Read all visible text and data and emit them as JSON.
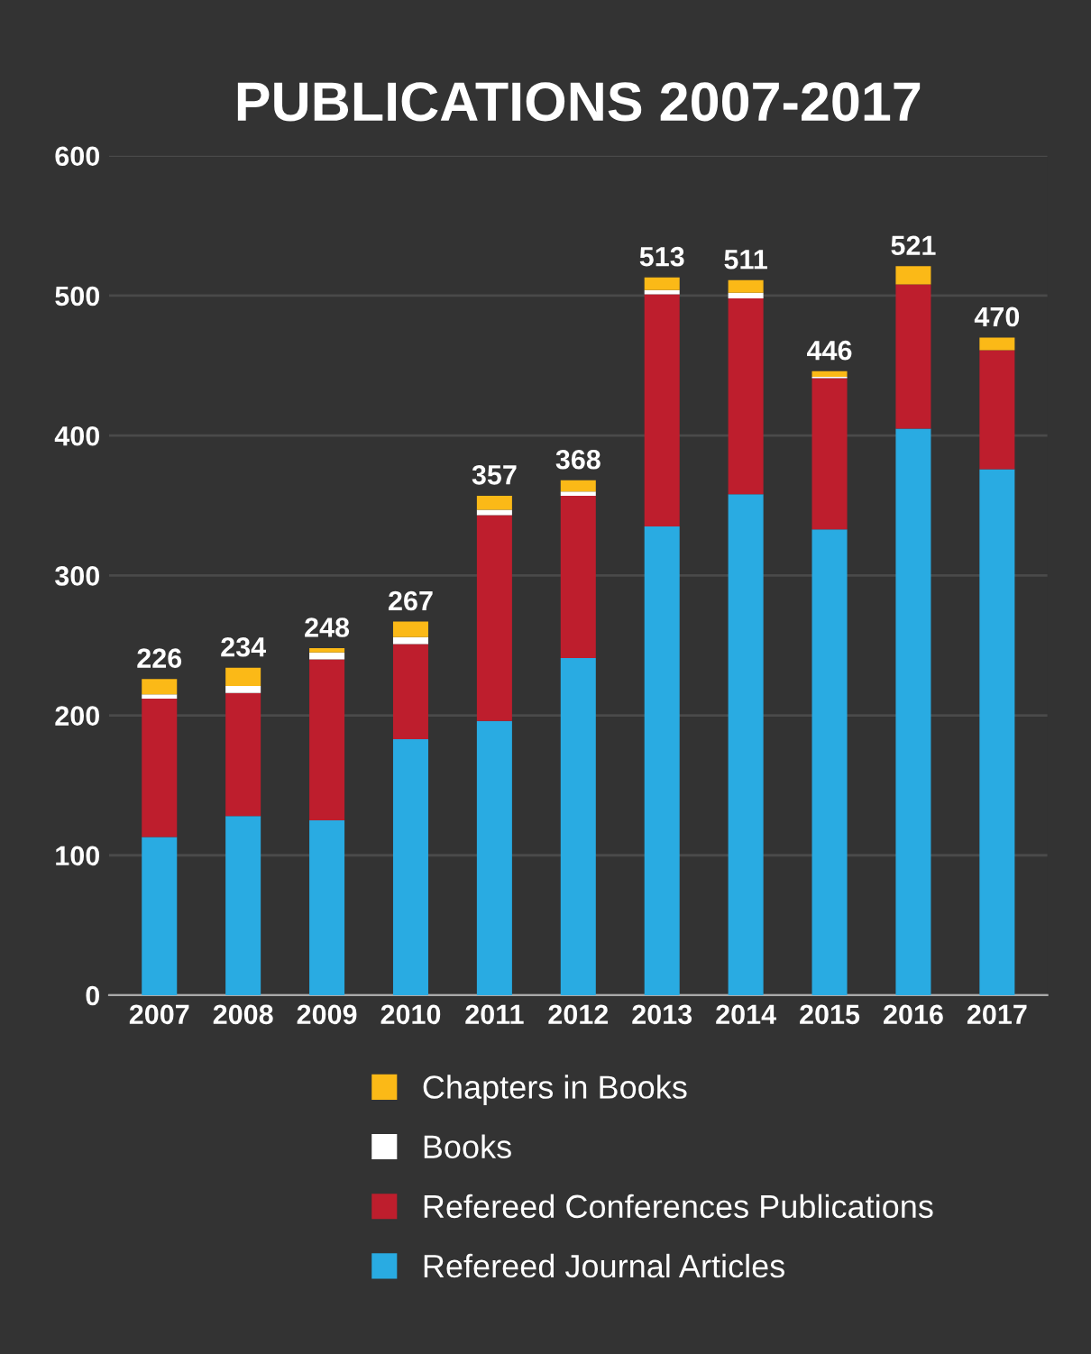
{
  "chart_data": {
    "type": "bar",
    "title": "PUBLICATIONS 2007-2017",
    "categories": [
      "2007",
      "2008",
      "2009",
      "2010",
      "2011",
      "2012",
      "2013",
      "2014",
      "2015",
      "2016",
      "2017"
    ],
    "stacked": true,
    "series": [
      {
        "name": "Refereed Journal Articles",
        "color": "#29abe2",
        "values": [
          113,
          128,
          125,
          183,
          196,
          241,
          335,
          358,
          333,
          405,
          376
        ]
      },
      {
        "name": "Refereed Conferences Publications",
        "color": "#be1e2d",
        "values": [
          99,
          88,
          115,
          68,
          147,
          116,
          166,
          140,
          108,
          103,
          85
        ]
      },
      {
        "name": "Books",
        "color": "#ffffff",
        "values": [
          3,
          5,
          5,
          5,
          4,
          3,
          3,
          4,
          1,
          0,
          0
        ]
      },
      {
        "name": "Chapters in Books",
        "color": "#fbb917",
        "values": [
          11,
          13,
          3,
          11,
          10,
          8,
          9,
          9,
          4,
          13,
          9
        ]
      }
    ],
    "totals": [
      "226",
      "234",
      "248",
      "267",
      "357",
      "368",
      "513",
      "511",
      "446",
      "521",
      "470"
    ],
    "ylim": [
      0,
      600
    ],
    "yticks": [
      0,
      100,
      200,
      300,
      400,
      500,
      600
    ],
    "grid": "y",
    "legend": "bottom"
  }
}
